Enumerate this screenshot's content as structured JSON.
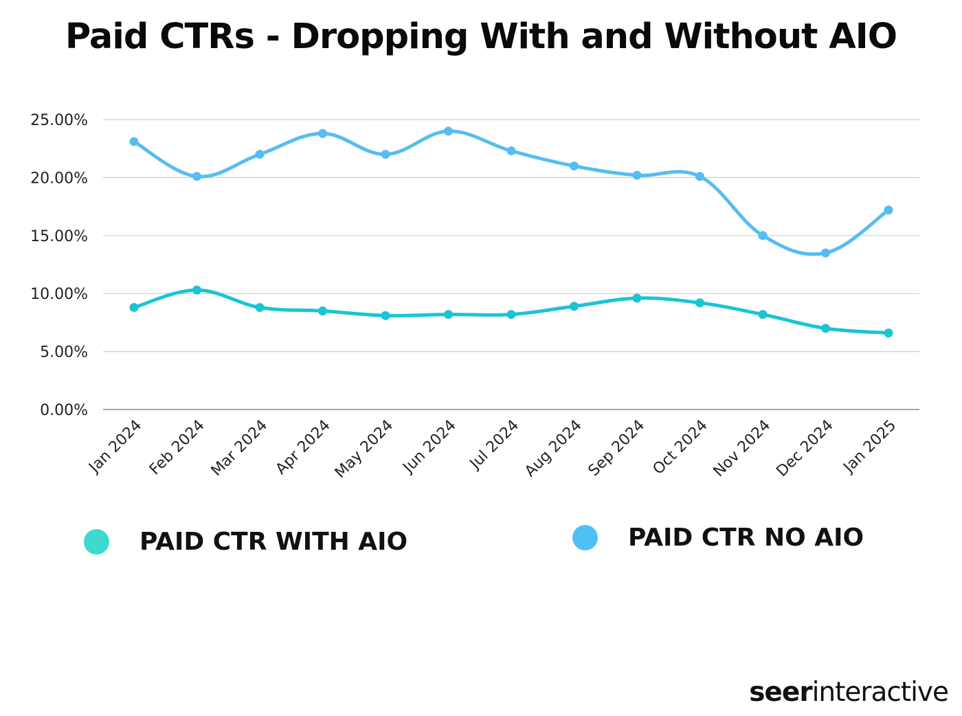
{
  "title": "Paid CTRs - Dropping With and Without AIO",
  "brand": {
    "part1": "seer",
    "part2": "interactive"
  },
  "chart_data": {
    "type": "line",
    "title": "Paid CTRs - Dropping With and Without AIO",
    "xlabel": "",
    "ylabel": "",
    "ylim": [
      0,
      25
    ],
    "yticks": [
      0,
      5,
      10,
      15,
      20,
      25
    ],
    "ytick_labels": [
      "0.00%",
      "5.00%",
      "10.00%",
      "15.00%",
      "20.00%",
      "25.00%"
    ],
    "grid": true,
    "legend_position": "bottom",
    "categories": [
      "Jan 2024",
      "Feb 2024",
      "Mar 2024",
      "Apr 2024",
      "May 2024",
      "Jun 2024",
      "Jul 2024",
      "Aug 2024",
      "Sep 2024",
      "Oct 2024",
      "Nov 2024",
      "Dec 2024",
      "Jan 2025"
    ],
    "series": [
      {
        "name": "PAID CTR WITH AIO",
        "color": "#1ac4d4",
        "legend_color": "#3dd9cf",
        "values": [
          8.8,
          10.3,
          8.8,
          8.5,
          8.1,
          8.2,
          8.2,
          8.9,
          9.6,
          9.2,
          8.2,
          7.0,
          6.6
        ]
      },
      {
        "name": "PAID CTR NO AIO",
        "color": "#55bdf1",
        "legend_color": "#4fc0f5",
        "values": [
          23.1,
          20.1,
          22.0,
          23.8,
          22.0,
          24.0,
          22.3,
          21.0,
          20.2,
          20.1,
          15.0,
          13.5,
          17.2
        ]
      }
    ]
  }
}
